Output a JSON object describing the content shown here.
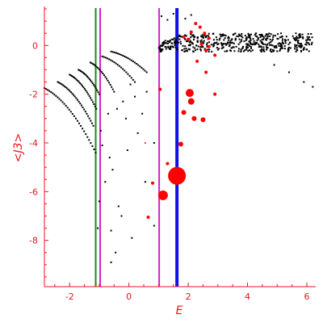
{
  "chart_data": {
    "type": "scatter",
    "title": "",
    "xlabel": "E",
    "ylabel": "<J3>",
    "xlim": [
      -2.85,
      6.3
    ],
    "ylim": [
      -9.9,
      1.6
    ],
    "x_ticks": [
      -2,
      0,
      2,
      4,
      6
    ],
    "y_ticks": [
      0,
      -2,
      -4,
      -6,
      -8
    ],
    "axis_color": "#e8141e",
    "grid": false,
    "vertical_lines": [
      {
        "x": -1.12,
        "color": "#1a8a1a",
        "width": 2
      },
      {
        "x": -0.97,
        "color": "#d020d0",
        "width": 2
      },
      {
        "x": 1.02,
        "color": "#d020d0",
        "width": 2
      },
      {
        "x": 1.62,
        "color": "#1010e6",
        "width": 4
      }
    ],
    "series": [
      {
        "color": "#000000",
        "band": {
          "x_range": [
            1.0,
            6.2
          ],
          "y_center": 0.12,
          "y_spread": 0.38,
          "count": 520
        },
        "arcs": [
          {
            "x_start": -2.85,
            "x_end": -1.12,
            "y_start": -1.75,
            "y_end": -4.4,
            "count": 32
          },
          {
            "x_start": -2.4,
            "x_end": -1.2,
            "y_start": -1.5,
            "y_end": -3.3,
            "count": 28
          },
          {
            "x_start": -2.0,
            "x_end": -1.1,
            "y_start": -1.2,
            "y_end": -2.6,
            "count": 24
          },
          {
            "x_start": -1.7,
            "x_end": -1.0,
            "y_start": -1.0,
            "y_end": -2.0,
            "count": 20
          },
          {
            "x_start": -1.3,
            "x_end": -0.5,
            "y_start": -0.7,
            "y_end": -1.9,
            "count": 20
          },
          {
            "x_start": -0.9,
            "x_end": 0.2,
            "y_start": -0.45,
            "y_end": -1.5,
            "count": 20
          },
          {
            "x_start": -0.6,
            "x_end": 0.6,
            "y_start": -0.25,
            "y_end": -1.1,
            "count": 22
          }
        ],
        "points": [
          {
            "x": -0.95,
            "y": -3.5
          },
          {
            "x": -0.9,
            "y": -4.1
          },
          {
            "x": -0.65,
            "y": -4.6
          },
          {
            "x": -0.55,
            "y": -5.1
          },
          {
            "x": -0.8,
            "y": -5.6
          },
          {
            "x": -1.0,
            "y": -6.4
          },
          {
            "x": -0.35,
            "y": -6.6
          },
          {
            "x": -0.25,
            "y": -7.0
          },
          {
            "x": -0.6,
            "y": -7.6
          },
          {
            "x": 0.1,
            "y": -7.9
          },
          {
            "x": -0.45,
            "y": -8.5
          },
          {
            "x": -0.6,
            "y": -8.9
          },
          {
            "x": -1.05,
            "y": -7.5
          },
          {
            "x": -0.05,
            "y": -4.3
          },
          {
            "x": 0.55,
            "y": -5.6
          },
          {
            "x": 0.3,
            "y": -3.6
          },
          {
            "x": -0.1,
            "y": -3.0
          },
          {
            "x": 0.45,
            "y": -2.8
          },
          {
            "x": 0.85,
            "y": -4.0
          },
          {
            "x": 1.15,
            "y": -6.1
          },
          {
            "x": 0.85,
            "y": -7.4
          },
          {
            "x": -0.2,
            "y": -2.3
          },
          {
            "x": -0.4,
            "y": -2.6
          },
          {
            "x": -0.7,
            "y": -2.8
          },
          {
            "x": 0.2,
            "y": -2.1
          },
          {
            "x": 0.6,
            "y": -1.9
          },
          {
            "x": 0.05,
            "y": -1.6
          },
          {
            "x": 5.4,
            "y": -1.1
          },
          {
            "x": 5.9,
            "y": -1.5
          },
          {
            "x": 6.2,
            "y": -1.7
          },
          {
            "x": 4.9,
            "y": -0.8
          },
          {
            "x": 1.1,
            "y": 1.2
          },
          {
            "x": 1.5,
            "y": 1.3
          },
          {
            "x": 1.3,
            "y": 1.05
          },
          {
            "x": 1.9,
            "y": 1.1
          },
          {
            "x": 2.1,
            "y": 1.25
          }
        ]
      },
      {
        "color": "#ff0000",
        "markers": [
          {
            "x": 1.62,
            "y": -5.35,
            "r": 11
          },
          {
            "x": 1.15,
            "y": -6.15,
            "r": 6
          },
          {
            "x": 2.05,
            "y": -1.95,
            "r": 5
          },
          {
            "x": 2.1,
            "y": -2.3,
            "r": 4
          },
          {
            "x": 1.85,
            "y": -2.75,
            "r": 3
          },
          {
            "x": 2.5,
            "y": -3.05,
            "r": 3
          },
          {
            "x": 2.2,
            "y": -3.0,
            "r": 3
          },
          {
            "x": 1.75,
            "y": -4.05,
            "r": 3
          },
          {
            "x": 2.9,
            "y": -2.0,
            "r": 2
          },
          {
            "x": 0.65,
            "y": -7.05,
            "r": 2
          },
          {
            "x": 0.8,
            "y": -5.65,
            "r": 2
          },
          {
            "x": 1.3,
            "y": -4.85,
            "r": 2
          },
          {
            "x": 1.05,
            "y": -1.8,
            "r": 2
          },
          {
            "x": 2.6,
            "y": -1.1,
            "r": 2
          },
          {
            "x": 2.3,
            "y": -0.65,
            "r": 2
          },
          {
            "x": 2.7,
            "y": 0.3,
            "r": 2
          },
          {
            "x": 2.45,
            "y": 0.05,
            "r": 2
          },
          {
            "x": 2.1,
            "y": 0.55,
            "r": 2
          },
          {
            "x": 2.55,
            "y": 0.5,
            "r": 2
          },
          {
            "x": 2.25,
            "y": 0.9,
            "r": 2
          },
          {
            "x": 2.6,
            "y": -0.2,
            "r": 2
          },
          {
            "x": 2.9,
            "y": -0.4,
            "r": 2
          },
          {
            "x": 2.7,
            "y": -0.05,
            "r": 2
          },
          {
            "x": 2.0,
            "y": 0.25,
            "r": 2
          },
          {
            "x": 1.85,
            "y": 0.35,
            "r": 2
          },
          {
            "x": 2.4,
            "y": 0.75,
            "r": 2
          },
          {
            "x": 0.55,
            "y": -4.0,
            "r": 1
          }
        ]
      }
    ]
  }
}
